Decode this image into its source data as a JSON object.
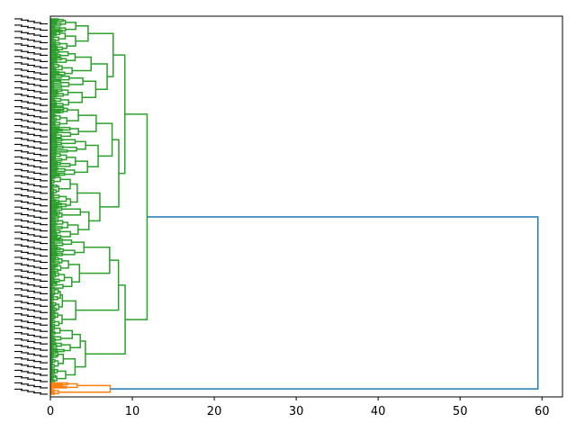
{
  "chart_data": {
    "type": "dendrogram",
    "orientation": "horizontal",
    "title": "",
    "xlabel": "",
    "ylabel": "",
    "xlim": [
      0,
      62.5
    ],
    "x_ticks": [
      0,
      10,
      20,
      30,
      40,
      50,
      60
    ],
    "grid": false,
    "leaf_count": 300,
    "leaf_labels_visible": true,
    "leaf_labels_legible": false,
    "colors": {
      "upper_cluster": "#2ca02c",
      "lower_cluster": "#ff7f0e",
      "root_link": "#1f77b4"
    },
    "clusters": [
      {
        "color_key": "upper_cluster",
        "leaf_range": [
          0,
          289
        ],
        "merge_height": 11.8,
        "sub_links": [
          {
            "height": 3.6,
            "leaves": [
              0,
              10
            ]
          },
          {
            "height": 4.1,
            "leaves": [
              10,
              25
            ]
          },
          {
            "height": 5.5,
            "leaves": [
              25,
              45
            ]
          },
          {
            "height": 6.2,
            "leaves": [
              45,
              70
            ]
          },
          {
            "height": 6.7,
            "leaves": [
              70,
              95
            ]
          },
          {
            "height": 7.0,
            "leaves": [
              95,
              125
            ]
          },
          {
            "height": 4.0,
            "leaves": [
              125,
              150
            ]
          },
          {
            "height": 5.0,
            "leaves": [
              150,
              175
            ]
          },
          {
            "height": 7.8,
            "leaves": [
              175,
              215
            ]
          },
          {
            "height": 3.5,
            "leaves": [
              215,
              245
            ]
          },
          {
            "height": 4.5,
            "leaves": [
              245,
              265
            ]
          },
          {
            "height": 3.9,
            "leaves": [
              265,
              289
            ]
          }
        ]
      },
      {
        "color_key": "lower_cluster",
        "leaf_range": [
          290,
          299
        ],
        "merge_height": 7.3,
        "sub_links": [
          {
            "height": 4.3,
            "leaves": [
              290,
              294
            ]
          },
          {
            "height": 1.0,
            "leaves": [
              295,
              299
            ]
          }
        ]
      }
    ],
    "root": {
      "height": 59.5,
      "joins": [
        "upper_cluster",
        "lower_cluster"
      ]
    }
  }
}
